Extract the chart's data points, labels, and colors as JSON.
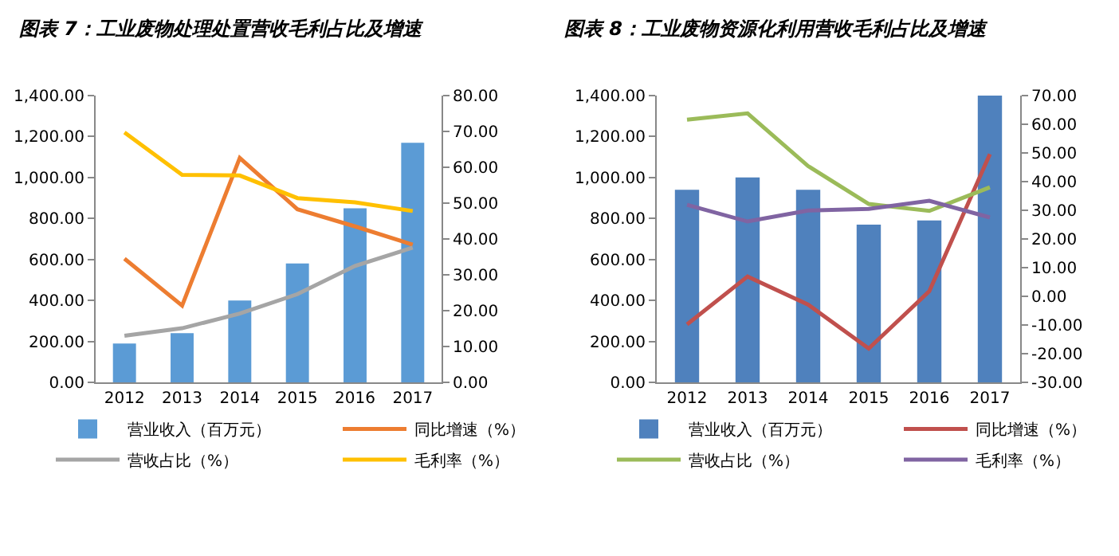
{
  "chart_data": [
    {
      "type": "bar",
      "title": "图表 7：工业废物处理处置营收毛利占比及增速",
      "categories": [
        "2012",
        "2013",
        "2014",
        "2015",
        "2016",
        "2017"
      ],
      "series": [
        {
          "name": "营业收入（百万元）",
          "type": "bar",
          "color": "#5b9bd5",
          "values": [
            190,
            240,
            400,
            580,
            850,
            1170
          ]
        },
        {
          "name": "同比增速（%）",
          "type": "line",
          "axis": "y2",
          "color": "#ed7d31",
          "values": [
            34.5,
            21.4,
            62.6,
            48.3,
            43.5,
            38.4
          ]
        },
        {
          "name": "营收占比（%）",
          "type": "line",
          "axis": "y2",
          "color": "#a5a5a5",
          "values": [
            13.0,
            15.1,
            19.2,
            24.6,
            32.5,
            37.6
          ]
        },
        {
          "name": "毛利率（%）",
          "type": "line",
          "axis": "y2",
          "color": "#ffc000",
          "values": [
            69.7,
            57.9,
            57.7,
            51.4,
            50.2,
            47.8
          ]
        }
      ],
      "ylim": [
        0,
        1400
      ],
      "yticks": [
        {
          "value": 0,
          "label": "0.00"
        },
        {
          "value": 200,
          "label": "200.00"
        },
        {
          "value": 400,
          "label": "400.00"
        },
        {
          "value": 600,
          "label": "600.00"
        },
        {
          "value": 800,
          "label": "800.00"
        },
        {
          "value": 1000,
          "label": "1,000.00"
        },
        {
          "value": 1200,
          "label": "1,200.00"
        },
        {
          "value": 1400,
          "label": "1,400.00"
        }
      ],
      "y2lim": [
        0,
        80
      ],
      "y2ticks": [
        {
          "value": 0,
          "label": "0.00"
        },
        {
          "value": 10,
          "label": "10.00"
        },
        {
          "value": 20,
          "label": "20.00"
        },
        {
          "value": 30,
          "label": "30.00"
        },
        {
          "value": 40,
          "label": "40.00"
        },
        {
          "value": 50,
          "label": "50.00"
        },
        {
          "value": 60,
          "label": "60.00"
        },
        {
          "value": 70,
          "label": "70.00"
        },
        {
          "value": 80,
          "label": "80.00"
        }
      ],
      "legend": "bottom"
    },
    {
      "type": "bar",
      "title": "图表 8：工业废物资源化利用营收毛利占比及增速",
      "categories": [
        "2012",
        "2013",
        "2014",
        "2015",
        "2016",
        "2017"
      ],
      "series": [
        {
          "name": "营业收入（百万元）",
          "type": "bar",
          "color": "#4f81bd",
          "values": [
            940,
            1000,
            940,
            770,
            790,
            1400
          ]
        },
        {
          "name": "同比增速（%）",
          "type": "line",
          "axis": "y2",
          "color": "#c0504d",
          "values": [
            -9.8,
            6.9,
            -2.9,
            -18.2,
            1.8,
            49.6
          ]
        },
        {
          "name": "营收占比（%）",
          "type": "line",
          "axis": "y2",
          "color": "#9bbb59",
          "values": [
            61.6,
            63.8,
            45.4,
            32.2,
            29.8,
            38.0
          ]
        },
        {
          "name": "毛利率（%）",
          "type": "line",
          "axis": "y2",
          "color": "#8064a2",
          "values": [
            31.9,
            26.1,
            29.9,
            30.5,
            33.3,
            27.5
          ]
        }
      ],
      "ylim": [
        0,
        1400
      ],
      "yticks": [
        {
          "value": 0,
          "label": "0.00"
        },
        {
          "value": 200,
          "label": "200.00"
        },
        {
          "value": 400,
          "label": "400.00"
        },
        {
          "value": 600,
          "label": "600.00"
        },
        {
          "value": 800,
          "label": "800.00"
        },
        {
          "value": 1000,
          "label": "1,000.00"
        },
        {
          "value": 1200,
          "label": "1,200.00"
        },
        {
          "value": 1400,
          "label": "1,400.00"
        }
      ],
      "y2lim": [
        -30,
        70
      ],
      "y2ticks": [
        {
          "value": -30,
          "label": "-30.00"
        },
        {
          "value": -20,
          "label": "-20.00"
        },
        {
          "value": -10,
          "label": "-10.00"
        },
        {
          "value": 0,
          "label": "0.00"
        },
        {
          "value": 10,
          "label": "10.00"
        },
        {
          "value": 20,
          "label": "20.00"
        },
        {
          "value": 30,
          "label": "30.00"
        },
        {
          "value": 40,
          "label": "40.00"
        },
        {
          "value": 50,
          "label": "50.00"
        },
        {
          "value": 60,
          "label": "60.00"
        },
        {
          "value": 70,
          "label": "70.00"
        }
      ],
      "legend": "bottom"
    }
  ]
}
